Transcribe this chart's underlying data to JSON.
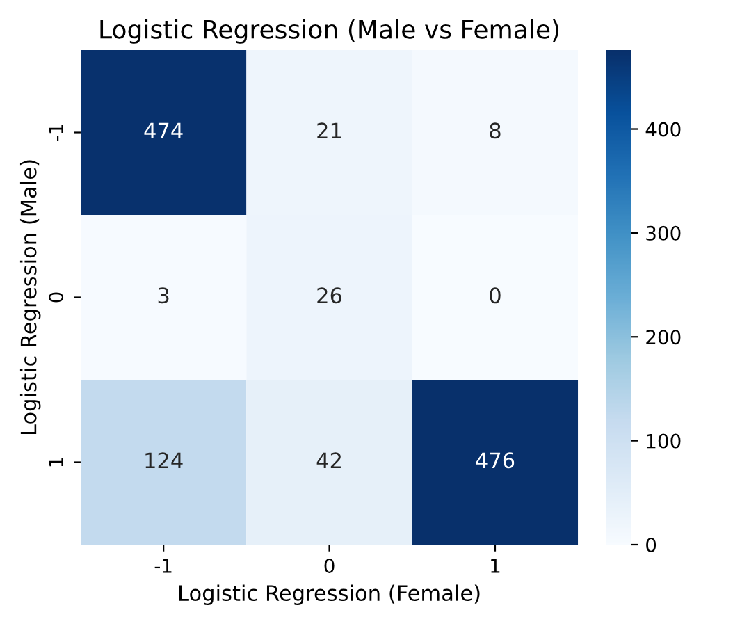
{
  "chart_data": {
    "type": "heatmap",
    "title": "Logistic Regression (Male vs Female)",
    "xlabel": "Logistic Regression (Female)",
    "ylabel": "Logistic Regression (Male)",
    "categories": [
      "-1",
      "0",
      "1"
    ],
    "y_categories": [
      "-1",
      "0",
      "1"
    ],
    "cells": [
      [
        474,
        21,
        8
      ],
      [
        3,
        26,
        0
      ],
      [
        124,
        42,
        476
      ]
    ],
    "data_labels": true,
    "clim": [
      0,
      476
    ],
    "cticks": [
      0,
      100,
      200,
      300,
      400
    ]
  }
}
